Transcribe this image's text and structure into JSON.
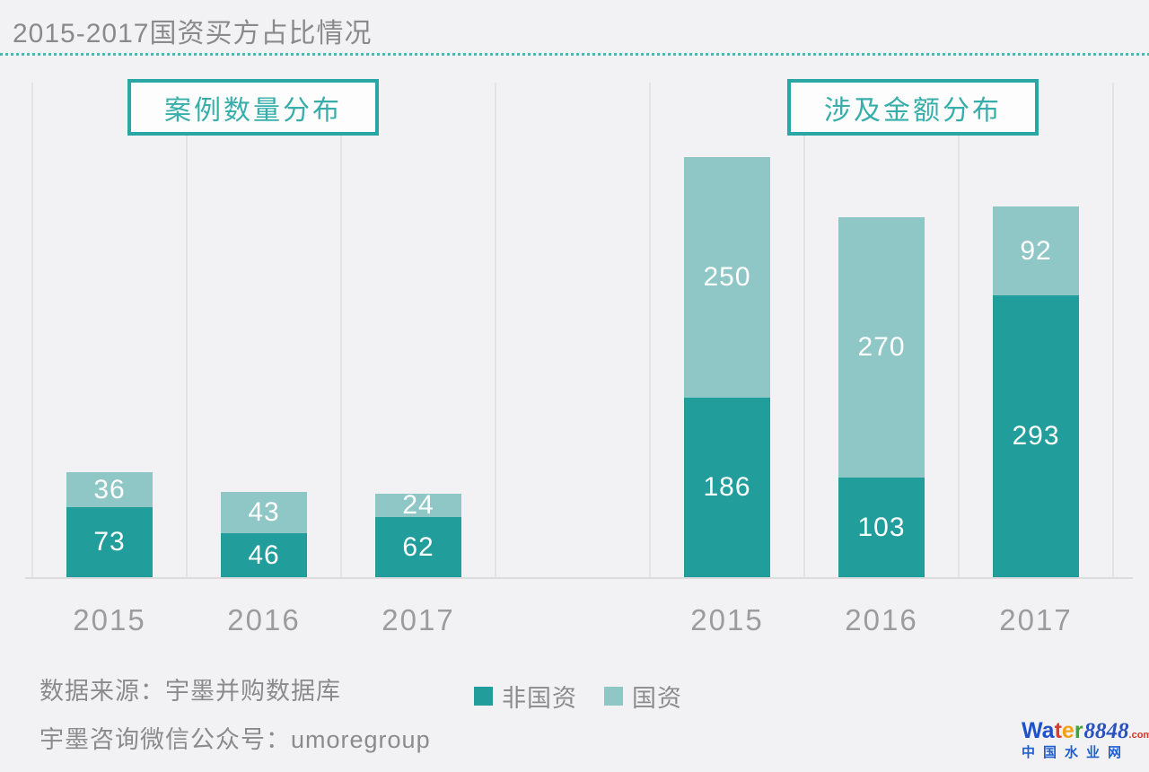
{
  "page": {
    "title": "2015-2017国资买方占比情况"
  },
  "colors": {
    "non_state": "#219e9c",
    "state": "#8fc7c6",
    "accent": "#2aa7a4"
  },
  "chart_data": {
    "type": "bar",
    "stacked": true,
    "grid": "vertical-lines-on",
    "legend_position": "bottom-center",
    "legend": [
      {
        "label": "非国资",
        "color": "#219e9c"
      },
      {
        "label": "国资",
        "color": "#8fc7c6"
      }
    ],
    "charts": [
      {
        "title": "案例数量分布",
        "categories": [
          "2015",
          "2016",
          "2017"
        ],
        "series": [
          {
            "name": "非国资",
            "values": [
              73,
              46,
              62
            ]
          },
          {
            "name": "国资",
            "values": [
              36,
              43,
              24
            ]
          }
        ]
      },
      {
        "title": "涉及金额分布",
        "categories": [
          "2015",
          "2016",
          "2017"
        ],
        "series": [
          {
            "name": "非国资",
            "values": [
              186,
              103,
              293
            ]
          },
          {
            "name": "国资",
            "values": [
              250,
              270,
              92
            ]
          }
        ]
      }
    ]
  },
  "footer": {
    "source": "数据来源：宇墨并购数据库",
    "wechat": "宇墨咨询微信公众号：umoregroup"
  },
  "logo": {
    "letters": [
      {
        "ch": "W",
        "color": "#1e52c8"
      },
      {
        "ch": "a",
        "color": "#1e52c8"
      },
      {
        "ch": "t",
        "color": "#e0392e"
      },
      {
        "ch": "e",
        "color": "#f2a112"
      },
      {
        "ch": "r",
        "color": "#3ba43a"
      }
    ],
    "suffix": "8848",
    "tld": ".com",
    "subtitle": "中国水业网"
  }
}
